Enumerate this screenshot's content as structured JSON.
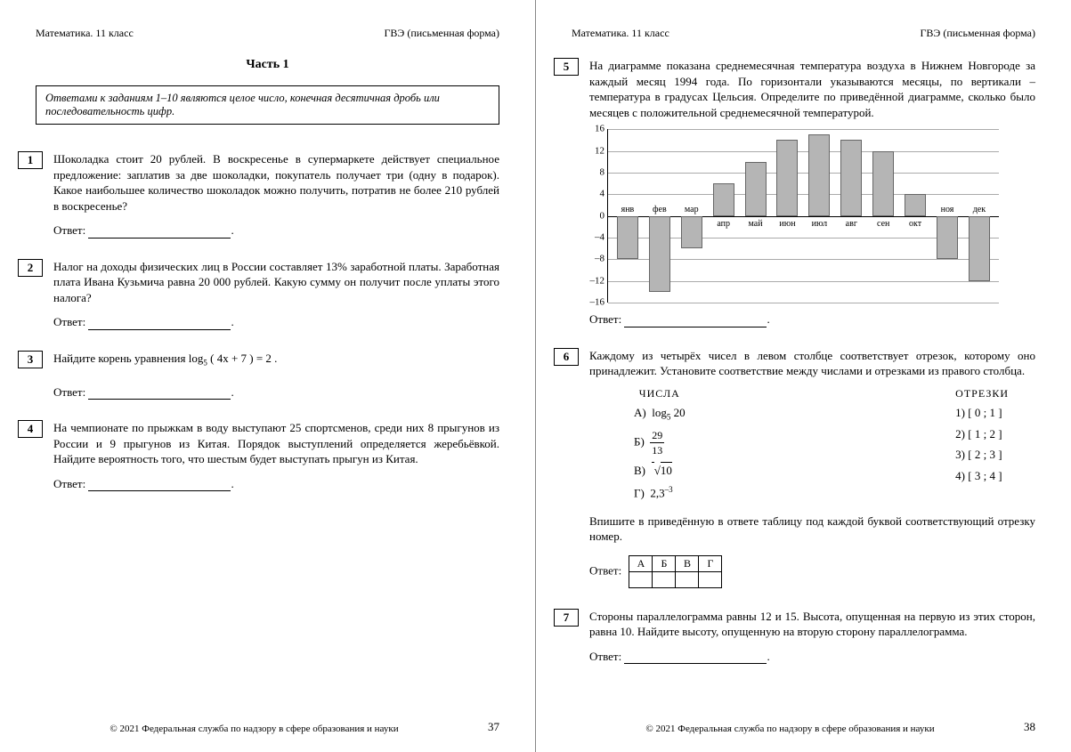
{
  "header": {
    "left": "Математика. 11 класс",
    "right": "ГВЭ (письменная форма)"
  },
  "part_title": "Часть 1",
  "instruction": "Ответами к заданиям 1–10 являются целое число, конечная десятичная дробь или последовательность цифр.",
  "answer_label": "Ответ:",
  "footer": {
    "copy": "© 2021 Федеральная служба по надзору в сфере образования и науки",
    "page_left": "37",
    "page_right": "38"
  },
  "tasks": {
    "t1": {
      "num": "1",
      "text": "Шоколадка стоит 20 рублей. В воскресенье в супермаркете действует специальное предложение: заплатив за две шоколадки, покупатель получает три (одну в подарок). Какое наибольшее количество шоколадок можно получить, потратив не более 210 рублей в воскресенье?"
    },
    "t2": {
      "num": "2",
      "text": "Налог на доходы физических лиц в России составляет 13% заработной платы. Заработная плата Ивана Кузьмича равна 20 000 рублей. Какую сумму он получит после уплаты этого налога?"
    },
    "t3": {
      "num": "3",
      "text_pre": "Найдите корень уравнения ",
      "eq": "log",
      "sub": "5",
      "arg": "( 4x + 7 ) = 2 ."
    },
    "t4": {
      "num": "4",
      "text": "На чемпионате по прыжкам в воду выступают 25 спортсменов, среди них 8 прыгунов из России и 9 прыгунов из Китая. Порядок выступлений определяется жеребьёвкой. Найдите вероятность того, что шестым будет выступать прыгун из Китая."
    },
    "t5": {
      "num": "5",
      "text": "На диаграмме показана среднемесячная температура воздуха в Нижнем Новгороде за каждый месяц 1994 года. По горизонтали указываются месяцы, по вертикали – температура в градусах Цельсия. Определите по приведённой диаграмме, сколько было месяцев с положительной среднемесячной температурой."
    },
    "t6": {
      "num": "6",
      "text": "Каждому из четырёх чисел в левом столбце соответствует отрезок, которому оно принадлежит. Установите соответствие между числами и отрезками из правого столбца.",
      "col_left_title": "ЧИСЛА",
      "col_right_title": "ОТРЕЗКИ",
      "numbers": {
        "a_label": "А)",
        "a_val_pre": "log",
        "a_sub": "5",
        "a_arg": "20",
        "b_label": "Б)",
        "b_num": "29",
        "b_den": "13",
        "v_label": "В)",
        "v_val": "10",
        "g_label": "Г)",
        "g_base": "2,3",
        "g_exp": "–3"
      },
      "segments": {
        "s1": "1)   [ 0 ; 1 ]",
        "s2": "2)   [ 1 ; 2 ]",
        "s3": "3)   [ 2 ; 3 ]",
        "s4": "4)   [ 3 ; 4 ]"
      },
      "instruction2": "Впишите в приведённую в ответе таблицу под каждой буквой соответствующий отрезку номер.",
      "ans_headers": [
        "А",
        "Б",
        "В",
        "Г"
      ]
    },
    "t7": {
      "num": "7",
      "text": "Стороны параллелограмма равны 12 и 15. Высота, опущенная на первую из этих сторон, равна 10. Найдите высоту, опущенную на вторую сторону параллелограмма."
    }
  },
  "chart": {
    "ymin": -16,
    "ymax": 16,
    "ystep": 4,
    "ylabels": [
      "16",
      "12",
      "8",
      "4",
      "0",
      "–4",
      "–8",
      "–12",
      "–16"
    ],
    "bar_color": "#b5b5b5",
    "months": [
      "янв",
      "фев",
      "мар",
      "апр",
      "май",
      "июн",
      "июл",
      "авг",
      "сен",
      "окт",
      "ноя",
      "дек"
    ],
    "values": [
      -8,
      -14,
      -6,
      6,
      10,
      14,
      15,
      14,
      12,
      4,
      -8,
      -12
    ]
  }
}
